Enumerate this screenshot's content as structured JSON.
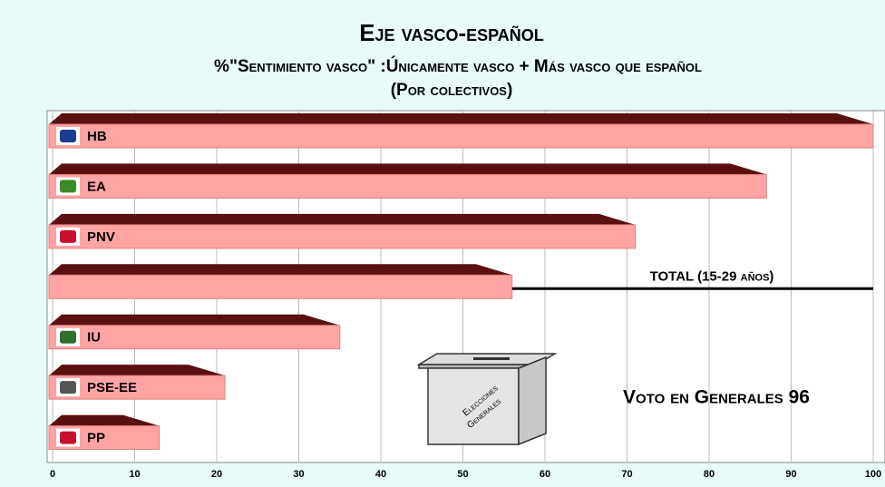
{
  "chart_data": {
    "type": "bar",
    "orientation": "horizontal",
    "title": "Eje vasco-español",
    "subtitle": [
      "%\"Sentimiento vasco\" :Únicamente vasco + Más vasco que español",
      "(Por colectivos)"
    ],
    "categories": [
      "HB",
      "EA",
      "PNV",
      "TOTAL (15-29 años)",
      "IU",
      "PSE-EE",
      "PP"
    ],
    "values": [
      100,
      87,
      71,
      56,
      35,
      21,
      13
    ],
    "color": "#ffa3a3",
    "xlim": [
      0,
      100
    ],
    "xticks": [
      0,
      10,
      20,
      30,
      40,
      50,
      60,
      70,
      80,
      90,
      100
    ],
    "grid": true,
    "annotations": [
      "Voto en Generales 96",
      "Elecciones",
      "Generales"
    ]
  }
}
